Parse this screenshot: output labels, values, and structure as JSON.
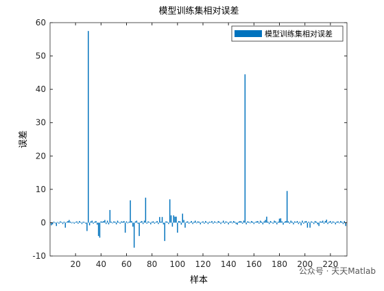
{
  "chart_data": {
    "type": "bar",
    "title": "模型训练集相对误差",
    "xlabel": "样本",
    "ylabel": "误差",
    "x": [
      1,
      2,
      3,
      4,
      5,
      6,
      7,
      8,
      9,
      10,
      11,
      12,
      13,
      14,
      15,
      16,
      17,
      18,
      19,
      20,
      21,
      22,
      23,
      24,
      25,
      26,
      27,
      28,
      29,
      30,
      31,
      32,
      33,
      34,
      35,
      36,
      37,
      38,
      39,
      40,
      41,
      42,
      43,
      44,
      45,
      46,
      47,
      48,
      49,
      50,
      51,
      52,
      53,
      54,
      55,
      56,
      57,
      58,
      59,
      60,
      61,
      62,
      63,
      64,
      65,
      66,
      67,
      68,
      69,
      70,
      71,
      72,
      73,
      74,
      75,
      76,
      77,
      78,
      79,
      80,
      81,
      82,
      83,
      84,
      85,
      86,
      87,
      88,
      89,
      90,
      91,
      92,
      93,
      94,
      95,
      96,
      97,
      98,
      99,
      100,
      101,
      102,
      103,
      104,
      105,
      106,
      107,
      108,
      109,
      110,
      111,
      112,
      113,
      114,
      115,
      116,
      117,
      118,
      119,
      120,
      121,
      122,
      123,
      124,
      125,
      126,
      127,
      128,
      129,
      130,
      131,
      132,
      133,
      134,
      135,
      136,
      137,
      138,
      139,
      140,
      141,
      142,
      143,
      144,
      145,
      146,
      147,
      148,
      149,
      150,
      151,
      152,
      153,
      154,
      155,
      156,
      157,
      158,
      159,
      160,
      161,
      162,
      163,
      164,
      165,
      166,
      167,
      168,
      169,
      170,
      171,
      172,
      173,
      174,
      175,
      176,
      177,
      178,
      179,
      180,
      181,
      182,
      183,
      184,
      185,
      186,
      187,
      188,
      189,
      190,
      191,
      192,
      193,
      194,
      195,
      196,
      197,
      198,
      199,
      200,
      201,
      202,
      203,
      204,
      205,
      206,
      207,
      208,
      209,
      210,
      211,
      212,
      213,
      214,
      215,
      216,
      217,
      218,
      219,
      220,
      221,
      222,
      223,
      224,
      225,
      226,
      227,
      228,
      229,
      230,
      231,
      232
    ],
    "series": [
      {
        "name": "模型训练集相对误差",
        "color": "#0072BD",
        "values": [
          -0.8,
          -0.5,
          0.3,
          -0.2,
          -1.0,
          0.2,
          -0.3,
          0.4,
          0.2,
          -0.4,
          0.3,
          -1.5,
          0.2,
          0.5,
          0.8,
          0.3,
          -0.2,
          0.2,
          -0.3,
          0.2,
          0.4,
          -0.3,
          0.5,
          0.2,
          -0.4,
          0.3,
          0.2,
          -0.3,
          -2.5,
          57.5,
          -0.8,
          0.4,
          0.6,
          -0.3,
          0.3,
          0.5,
          -0.6,
          -4,
          -4.5,
          0.4,
          0.3,
          0.5,
          0.8,
          -0.4,
          0.6,
          -0.5,
          3.8,
          0.3,
          -0.2,
          0.4,
          0.3,
          -0.5,
          0.6,
          0.2,
          -0.3,
          0.4,
          0.3,
          0.5,
          -3,
          0.4,
          -0.2,
          0.3,
          6.7,
          0.5,
          -1.2,
          -7.5,
          0.4,
          0.6,
          -0.3,
          -4,
          0.3,
          0.5,
          -0.4,
          0.6,
          7.5,
          -0.3,
          0.4,
          0.2,
          -0.5,
          0.3,
          0.4,
          -0.3,
          0.2,
          0.5,
          -0.4,
          1.7,
          0.3,
          1.7,
          -0.5,
          -5.5,
          0.4,
          0.3,
          -0.4,
          7,
          2.2,
          -1.2,
          2.2,
          1.8,
          1.8,
          -3,
          0.5,
          0.4,
          -0.6,
          2.7,
          0.8,
          -1.5,
          0.3,
          0.4,
          -0.3,
          0.2,
          0.5,
          -0.4,
          0.3,
          0.6,
          -0.2,
          0.4,
          0.3,
          -0.5,
          0.2,
          0.4,
          -0.3,
          0.5,
          0.2,
          -0.4,
          0.3,
          0.2,
          0.5,
          -0.3,
          0.4,
          0.2,
          -0.2,
          0.5,
          0.3,
          -0.4,
          0.2,
          0.6,
          -0.3,
          0.4,
          0.2,
          -0.5,
          0.3,
          0.4,
          -0.2,
          0.5,
          0.3,
          -0.4,
          -0.6,
          0.3,
          0.5,
          0.4,
          -0.3,
          0.6,
          44.5,
          -0.5,
          0.4,
          0.3,
          -0.2,
          0.5,
          0.3,
          -0.4,
          0.2,
          0.4,
          0.5,
          -0.3,
          0.6,
          0.3,
          -0.5,
          0.4,
          0.8,
          1.8,
          0.3,
          -0.4,
          0.5,
          0.2,
          -0.3,
          0.6,
          0.4,
          -0.5,
          0.3,
          1.2,
          1.3,
          0.4,
          -0.6,
          0.3,
          0.5,
          9.5,
          0.4,
          -0.3,
          0.6,
          0.3,
          -0.5,
          0.4,
          0.2,
          0.5,
          -0.4,
          0.3,
          -0.8,
          0.6,
          -0.3,
          0.4,
          0.5,
          -1.5,
          0.3,
          -1.5,
          0.4,
          0.2,
          -0.4,
          0.5,
          0.3,
          -0.5,
          -1,
          0.4,
          0.3,
          0.6,
          -0.3,
          0.5,
          0.9,
          -0.4,
          0.3,
          0.5,
          -0.3,
          0.4,
          0.2,
          -0.5,
          0.3,
          0.4,
          -0.2,
          0.5,
          0.3,
          -0.4,
          0.5,
          -1
        ]
      }
    ],
    "xlim": [
      0,
      233
    ],
    "xticks": [
      20,
      40,
      60,
      80,
      100,
      120,
      140,
      160,
      180,
      200,
      220
    ],
    "ylim": [
      -10,
      60
    ],
    "yticks": [
      -10,
      0,
      10,
      20,
      30,
      40,
      50,
      60
    ],
    "legend": "northeast",
    "watermark": "公众号 · 天天Matlab"
  }
}
